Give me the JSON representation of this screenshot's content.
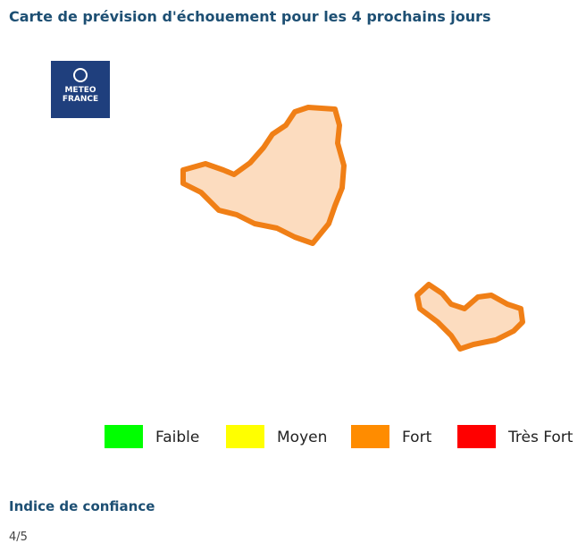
{
  "header": {
    "title": "Carte de prévision d'échouement pour les 4 prochains jours"
  },
  "logo": {
    "line1": "METEO",
    "line2": "FRANCE"
  },
  "legend": [
    {
      "label": "Faible",
      "color": "#00ff00"
    },
    {
      "label": "Moyen",
      "color": "#ffff00"
    },
    {
      "label": "Fort",
      "color": "#ff8c00"
    },
    {
      "label": "Très Fort",
      "color": "#ff0000"
    }
  ],
  "confidence": {
    "title": "Indice de confiance",
    "value": "4/5"
  }
}
